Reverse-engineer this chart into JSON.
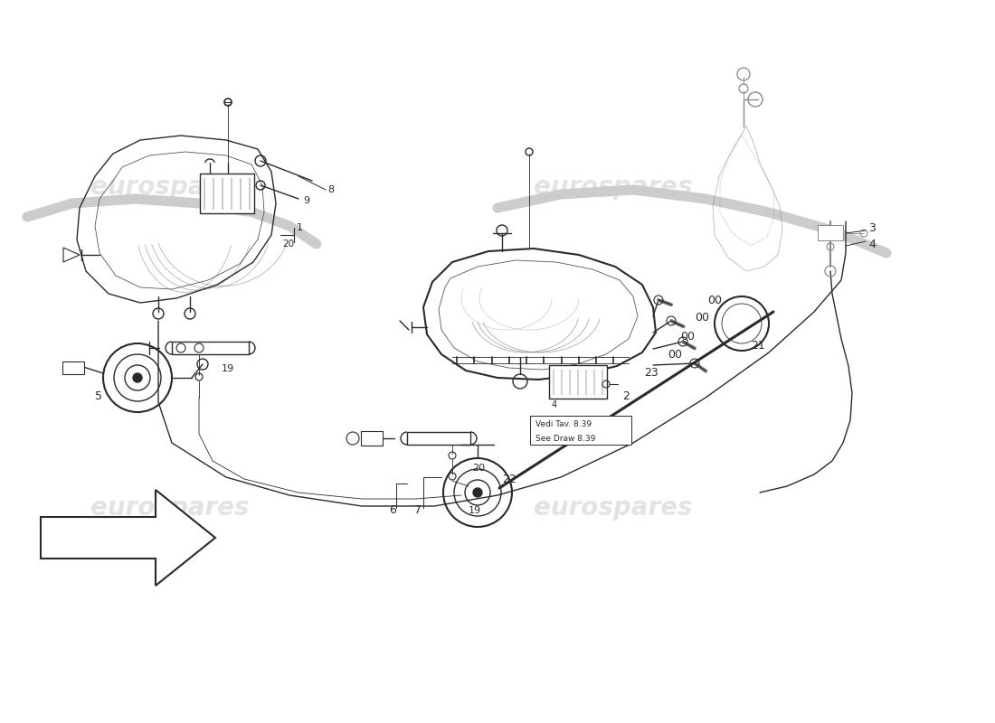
{
  "background_color": "#ffffff",
  "line_color": "#2a2a2a",
  "watermark_color": "#cccccc",
  "watermark_text": "eurospares",
  "figsize": [
    11.0,
    8.0
  ],
  "dpi": 100,
  "note_text1": "Vedi Tav. 8.39",
  "note_text2": "See Draw 8.39"
}
